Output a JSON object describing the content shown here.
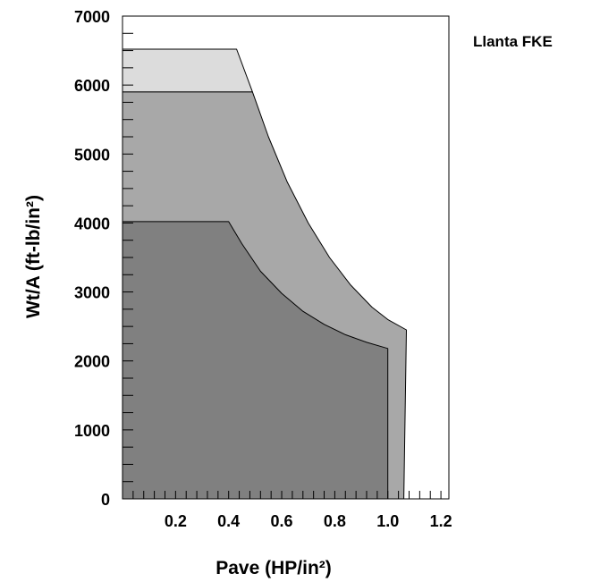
{
  "chart_data": {
    "type": "area",
    "title": "",
    "xlabel": "Pave (HP/in²)",
    "ylabel": "Wt/A (ft-lb/in²)",
    "annotation": "Llanta FKE",
    "xlim": [
      0,
      1.23
    ],
    "ylim": [
      0,
      7000
    ],
    "x_ticks": [
      {
        "value": 0.2,
        "label": "0.2"
      },
      {
        "value": 0.4,
        "label": "0.4"
      },
      {
        "value": 0.6,
        "label": "0.6"
      },
      {
        "value": 0.8,
        "label": "0.8"
      },
      {
        "value": 1.0,
        "label": "1.0"
      },
      {
        "value": 1.2,
        "label": "1.2"
      }
    ],
    "y_ticks": [
      {
        "value": 0,
        "label": "0"
      },
      {
        "value": 1000,
        "label": "1000"
      },
      {
        "value": 2000,
        "label": "2000"
      },
      {
        "value": 3000,
        "label": "3000"
      },
      {
        "value": 4000,
        "label": "4000"
      },
      {
        "value": 5000,
        "label": "5000"
      },
      {
        "value": 6000,
        "label": "6000"
      },
      {
        "value": 7000,
        "label": "7000"
      }
    ],
    "minor_x_step": 0.04,
    "minor_y_step": 250,
    "regions": [
      {
        "color": "#dcdcdc",
        "points": [
          [
            0,
            5900
          ],
          [
            0,
            6520
          ],
          [
            0.43,
            6520
          ],
          [
            0.49,
            5900
          ]
        ]
      },
      {
        "color": "#a8a8a8",
        "points": [
          [
            0,
            0
          ],
          [
            0,
            5900
          ],
          [
            0.49,
            5900
          ],
          [
            0.55,
            5250
          ],
          [
            0.62,
            4600
          ],
          [
            0.7,
            4000
          ],
          [
            0.78,
            3500
          ],
          [
            0.86,
            3100
          ],
          [
            0.94,
            2780
          ],
          [
            1.0,
            2600
          ],
          [
            1.07,
            2450
          ],
          [
            1.06,
            0
          ]
        ]
      },
      {
        "color": "#808080",
        "points": [
          [
            0,
            0
          ],
          [
            0,
            4020
          ],
          [
            0.4,
            4020
          ],
          [
            0.45,
            3700
          ],
          [
            0.52,
            3300
          ],
          [
            0.6,
            2980
          ],
          [
            0.68,
            2720
          ],
          [
            0.76,
            2530
          ],
          [
            0.84,
            2380
          ],
          [
            0.92,
            2270
          ],
          [
            1.0,
            2180
          ],
          [
            1.0,
            0
          ]
        ]
      }
    ]
  }
}
